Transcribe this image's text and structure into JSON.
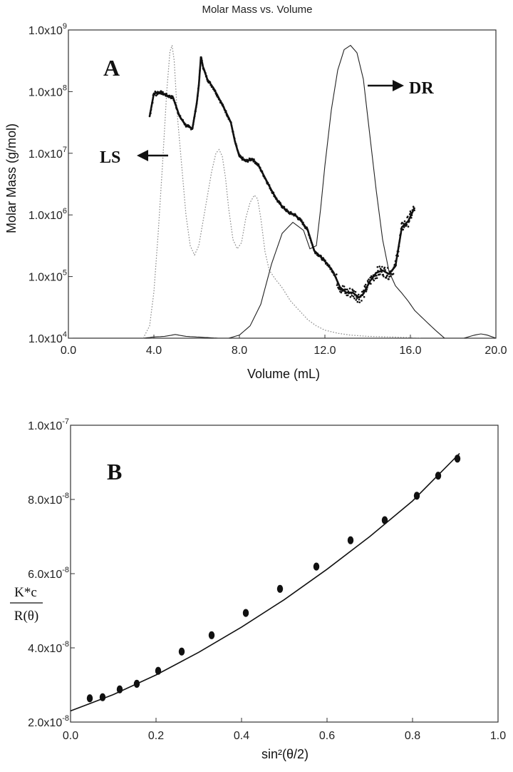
{
  "chart_data": [
    {
      "type": "line",
      "panel_label": "A",
      "title": "Molar Mass vs. Volume",
      "xlabel": "Volume (mL)",
      "ylabel": "Molar Mass (g/mol)",
      "xlim": [
        0,
        20
      ],
      "ylim_log10": [
        4,
        9
      ],
      "x_ticks": [
        {
          "value": 0,
          "label": "0.0"
        },
        {
          "value": 4,
          "label": "4.0"
        },
        {
          "value": 8,
          "label": "8.0"
        },
        {
          "value": 12,
          "label": "12.0"
        },
        {
          "value": 16,
          "label": "16.0"
        },
        {
          "value": 20,
          "label": "20.0"
        }
      ],
      "y_ticks": [
        {
          "exp": 4,
          "mantissa": "1.0x10",
          "power": "4"
        },
        {
          "exp": 5,
          "mantissa": "1.0x10",
          "power": "5"
        },
        {
          "exp": 6,
          "mantissa": "1.0x10",
          "power": "6"
        },
        {
          "exp": 7,
          "mantissa": "1.0x10",
          "power": "7"
        },
        {
          "exp": 8,
          "mantissa": "1.0x10",
          "power": "8"
        },
        {
          "exp": 9,
          "mantissa": "1.0x10",
          "power": "9"
        }
      ],
      "annotations": [
        {
          "text": "LS",
          "arrow": "left",
          "points_to_series": "LS"
        },
        {
          "text": "DR",
          "arrow": "right",
          "points_to_series": "DR"
        }
      ],
      "series": [
        {
          "name": "Molar Mass",
          "style": "heavy dotted",
          "x": [
            3.8,
            4.0,
            4.3,
            4.6,
            4.9,
            5.2,
            5.5,
            5.8,
            6.0,
            6.1,
            6.2,
            6.3,
            6.5,
            6.8,
            7.0,
            7.3,
            7.6,
            7.8,
            8.0,
            8.3,
            8.6,
            8.9,
            9.2,
            9.5,
            9.8,
            10.0,
            10.3,
            10.6,
            10.9,
            11.2,
            11.5,
            11.8,
            12.1,
            12.4,
            12.7,
            13.0,
            13.3,
            13.6,
            13.8,
            14.1,
            14.4,
            14.7,
            15.0,
            15.3,
            15.6,
            15.9,
            16.2
          ],
          "log10_y": [
            7.6,
            7.97,
            7.99,
            7.94,
            7.9,
            7.6,
            7.45,
            7.4,
            7.8,
            8.1,
            8.57,
            8.4,
            8.2,
            8.05,
            7.92,
            7.72,
            7.5,
            7.18,
            6.95,
            6.87,
            6.91,
            6.8,
            6.6,
            6.4,
            6.22,
            6.14,
            6.04,
            6.0,
            5.9,
            5.75,
            5.42,
            5.32,
            5.21,
            5.07,
            4.83,
            4.74,
            4.74,
            4.66,
            4.72,
            4.92,
            5.06,
            5.1,
            5.04,
            5.17,
            5.8,
            5.9,
            6.12
          ]
        },
        {
          "name": "LS",
          "style": "dotted",
          "x": [
            3.5,
            3.8,
            4.0,
            4.2,
            4.4,
            4.6,
            4.75,
            4.85,
            4.95,
            5.1,
            5.3,
            5.5,
            5.7,
            5.9,
            6.1,
            6.3,
            6.5,
            6.7,
            6.9,
            7.05,
            7.2,
            7.35,
            7.5,
            7.7,
            7.9,
            8.1,
            8.3,
            8.5,
            8.7,
            8.85,
            9.0,
            9.2,
            9.4,
            9.7,
            10.0,
            10.4,
            10.8,
            11.2,
            11.6,
            12.0,
            12.6,
            13.2,
            14.0,
            15.0,
            16.0,
            16.5
          ],
          "log10_y": [
            4.0,
            4.2,
            4.75,
            5.7,
            6.8,
            8.0,
            8.65,
            8.75,
            8.5,
            7.6,
            6.8,
            6.0,
            5.5,
            5.35,
            5.5,
            5.9,
            6.3,
            6.7,
            7.0,
            7.06,
            6.95,
            6.6,
            6.1,
            5.6,
            5.45,
            5.55,
            5.95,
            6.2,
            6.32,
            6.26,
            5.95,
            5.4,
            5.1,
            4.95,
            4.82,
            4.6,
            4.45,
            4.3,
            4.2,
            4.13,
            4.08,
            4.05,
            4.03,
            4.02,
            4.01,
            4.0
          ]
        },
        {
          "name": "DR",
          "style": "thin solid",
          "x": [
            0,
            3.5,
            4.0,
            4.5,
            5.0,
            5.5,
            6.0,
            7.0,
            7.5,
            8.0,
            8.5,
            9.0,
            9.5,
            10.0,
            10.5,
            11.0,
            11.3,
            11.6,
            11.8,
            12.0,
            12.3,
            12.6,
            12.9,
            13.2,
            13.5,
            13.8,
            14.1,
            14.4,
            14.7,
            15.0,
            15.3,
            15.6,
            15.9,
            16.2,
            16.5,
            16.8,
            17.2,
            17.6,
            18.0,
            18.5,
            19.0,
            19.3,
            19.6,
            20.0
          ],
          "log10_y": [
            4.0,
            4.0,
            4.02,
            4.03,
            4.06,
            4.03,
            4.02,
            4.0,
            4.0,
            4.05,
            4.2,
            4.55,
            5.2,
            5.7,
            5.88,
            5.75,
            5.45,
            5.5,
            6.1,
            6.8,
            7.7,
            8.35,
            8.68,
            8.75,
            8.63,
            8.2,
            7.3,
            6.4,
            5.6,
            5.08,
            4.85,
            4.73,
            4.6,
            4.45,
            4.35,
            4.25,
            4.12,
            4.0,
            4.0,
            4.0,
            4.05,
            4.07,
            4.05,
            4.0
          ]
        }
      ]
    },
    {
      "type": "scatter",
      "panel_label": "B",
      "xlabel": "sin²(θ/2)",
      "ylabel_numerator": "K*c",
      "ylabel_denominator": "R(θ)",
      "xlim": [
        0,
        1
      ],
      "ylim": [
        2e-08,
        1e-07
      ],
      "x_ticks": [
        {
          "value": 0.0,
          "label": "0.0"
        },
        {
          "value": 0.2,
          "label": "0.2"
        },
        {
          "value": 0.4,
          "label": "0.4"
        },
        {
          "value": 0.6,
          "label": "0.6"
        },
        {
          "value": 0.8,
          "label": "0.8"
        },
        {
          "value": 1.0,
          "label": "1.0"
        }
      ],
      "y_ticks": [
        {
          "value": 2e-08,
          "mantissa": "2.0x10",
          "power": "-8"
        },
        {
          "value": 4e-08,
          "mantissa": "4.0x10",
          "power": "-8"
        },
        {
          "value": 6e-08,
          "mantissa": "6.0x10",
          "power": "-8"
        },
        {
          "value": 8e-08,
          "mantissa": "8.0x10",
          "power": "-8"
        },
        {
          "value": 1e-07,
          "mantissa": "1.0x10",
          "power": "-7"
        }
      ],
      "points": {
        "x": [
          0.045,
          0.075,
          0.115,
          0.155,
          0.205,
          0.26,
          0.33,
          0.41,
          0.49,
          0.575,
          0.655,
          0.735,
          0.81,
          0.86,
          0.905
        ],
        "y": [
          2.64e-08,
          2.67e-08,
          2.88e-08,
          3.03e-08,
          3.38e-08,
          3.9e-08,
          4.34e-08,
          4.94e-08,
          5.59e-08,
          6.19e-08,
          6.9e-08,
          7.44e-08,
          8.1e-08,
          8.64e-08,
          9.1e-08
        ]
      },
      "fit_line": {
        "x": [
          0.0,
          0.1,
          0.2,
          0.3,
          0.4,
          0.5,
          0.6,
          0.7,
          0.8,
          0.91
        ],
        "y": [
          2.3e-08,
          2.74e-08,
          3.27e-08,
          3.88e-08,
          4.56e-08,
          5.3e-08,
          6.12e-08,
          7e-08,
          7.96e-08,
          9.24e-08
        ]
      }
    }
  ]
}
